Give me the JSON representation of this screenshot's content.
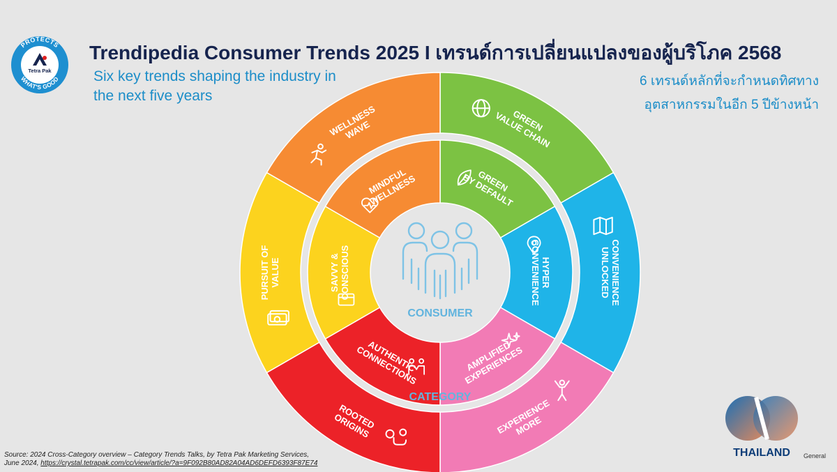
{
  "header": {
    "title": "Trendipedia Consumer Trends 2025 I เทรนด์การเปลี่ยนแปลงของผู้บริโภค 2568",
    "subtitle_en": "Six key trends shaping the industry in the next five years",
    "subtitle_th_line1": "6 เทรนด์หลักที่จะกำหนดทิศทาง",
    "subtitle_th_line2": "อุตสาหกรรมในอีก 5 ปีข้างหน้า"
  },
  "logos": {
    "tetra_pak": {
      "ring_text_top": "PROTECTS",
      "ring_text_bottom": "WHAT'S GOOD",
      "brand": "Tetra Pak"
    },
    "sd_thailand": {
      "label": "THAILAND"
    }
  },
  "center": {
    "consumer_label": "CONSUMER",
    "category_label": "CATEGORY",
    "icon": "people-group-icon"
  },
  "outer_ring": [
    {
      "line1": "GREEN",
      "line2": "VALUE CHAIN",
      "color": "#7cc243",
      "icon": "globe-leaf-icon"
    },
    {
      "line1": "CONVENIENCE",
      "line2": "UNLOCKED",
      "color": "#1fb4e8",
      "icon": "map-icon"
    },
    {
      "line1": "EXPERIENCE",
      "line2": "MORE",
      "color": "#f27bb5",
      "icon": "celebrating-person-icon"
    },
    {
      "line1": "ROOTED",
      "line2": "ORIGINS",
      "color": "#ec2228",
      "icon": "location-route-icon"
    },
    {
      "line1": "PURSUIT OF",
      "line2": "VALUE",
      "color": "#fcd31e",
      "icon": "money-icon"
    },
    {
      "line1": "WELLNESS",
      "line2": "WAVE",
      "color": "#f68b33",
      "icon": "running-person-icon"
    }
  ],
  "inner_ring": [
    {
      "line1": "GREEN",
      "line2": "BY DEFAULT",
      "color": "#7cc243",
      "icon": "leaf-icon"
    },
    {
      "line1": "HYPER",
      "line2": "CONVENIENCE",
      "color": "#1fb4e8",
      "icon": "location-pin-icon"
    },
    {
      "line1": "AMPLIFIED",
      "line2": "EXPERIENCES",
      "color": "#f27bb5",
      "icon": "sparkle-icon"
    },
    {
      "line1": "AUTHENTIC",
      "line2": "CONNECTIONS",
      "color": "#ec2228",
      "icon": "handshake-icon"
    },
    {
      "line1": "SAVVY &",
      "line2": "CONSCIOUS",
      "color": "#fcd31e",
      "icon": "card-icon"
    },
    {
      "line1": "MINDFUL",
      "line2": "WELLNESS",
      "color": "#f68b33",
      "icon": "heart-pulse-icon"
    }
  ],
  "footer": {
    "source_line1": "Source: 2024 Cross-Category overview – Category Trends Talks, by Tetra Pak Marketing Services,",
    "source_line2_prefix": "June 2024, ",
    "source_link": "https://crystal.tetrapak.com/cc/view/article/?a=9F092B80AD82A04AD6DEFD6393F87E74",
    "classification": "General"
  }
}
